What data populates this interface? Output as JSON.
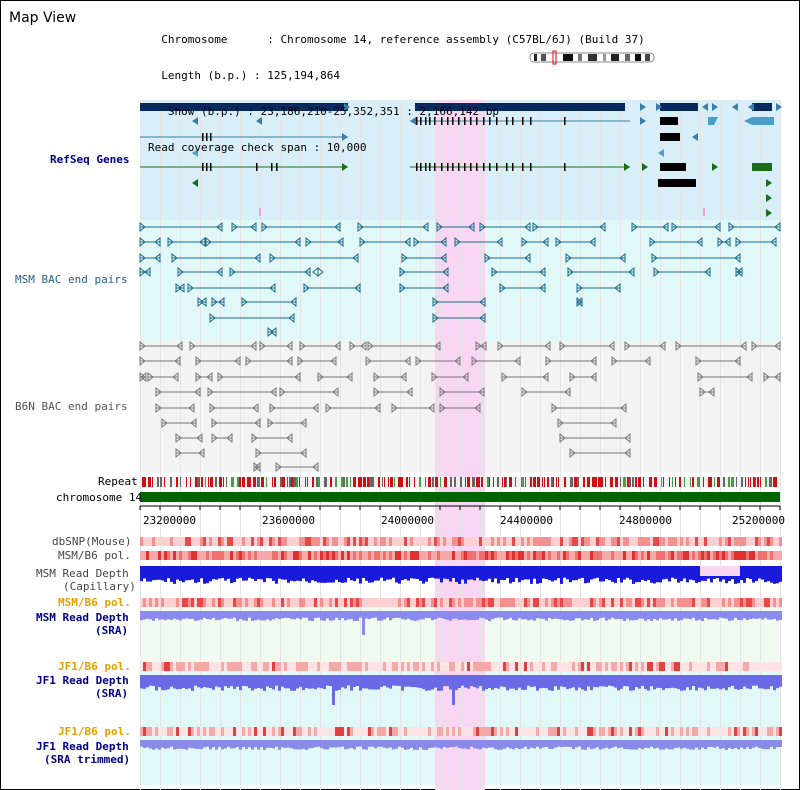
{
  "header": {
    "title": "Map View",
    "info_lines": [
      "  Chromosome      : Chromosome 14, reference assembly (C57BL/6J) (Build 37)",
      "  Length (b.p.) : 125,194,864",
      "   Show (b.p.) : 23,186,210-25,352,351 : 2,166,142 bp",
      "Read coverage check span : 10,000"
    ]
  },
  "tracks": {
    "refseq": "RefSeq Genes",
    "msm_bac": "MSM BAC end pairs",
    "b6n_bac": "B6N BAC end pairs",
    "repeat": "Repeat",
    "chromosome": "chromosome 14",
    "dbsnp": "dbSNP(Mouse)",
    "msm_b6_pol_1": "MSM/B6 pol.",
    "msm_read_depth_cap_1": "MSM Read Depth",
    "msm_read_depth_cap_2": "(Capillary)",
    "msm_b6_pol_2": "MSM/B6 pol.",
    "msm_read_depth_sra_1": "MSM Read Depth",
    "msm_read_depth_sra_2": "(SRA)",
    "jf1_b6_pol_1": "JF1/B6 pol.",
    "jf1_read_depth_sra_1": "JF1 Read Depth",
    "jf1_read_depth_sra_2": "(SRA)",
    "jf1_b6_pol_2": "JF1/B6 pol.",
    "jf1_read_depth_trim_1": "JF1 Read Depth",
    "jf1_read_depth_trim_2": "(SRA trimmed)"
  },
  "axis": {
    "ticks": [
      "23200000",
      "23600000",
      "24000000",
      "24400000",
      "24800000",
      "25200000"
    ]
  },
  "colors": {
    "highlight": "#f9d6f3",
    "refseq_bg": "#d8eef8",
    "msm_bg": "#e0f8f8",
    "b6n_bg": "#f3f3f3",
    "gene_dark": "#0a2a5e",
    "gene_blue": "#3a7fa8",
    "gene_green": "#1a6e1a",
    "chrom_green": "#006400",
    "label_blue": "#00008b",
    "label_orange": "#e8a000",
    "label_gray": "#444444"
  }
}
